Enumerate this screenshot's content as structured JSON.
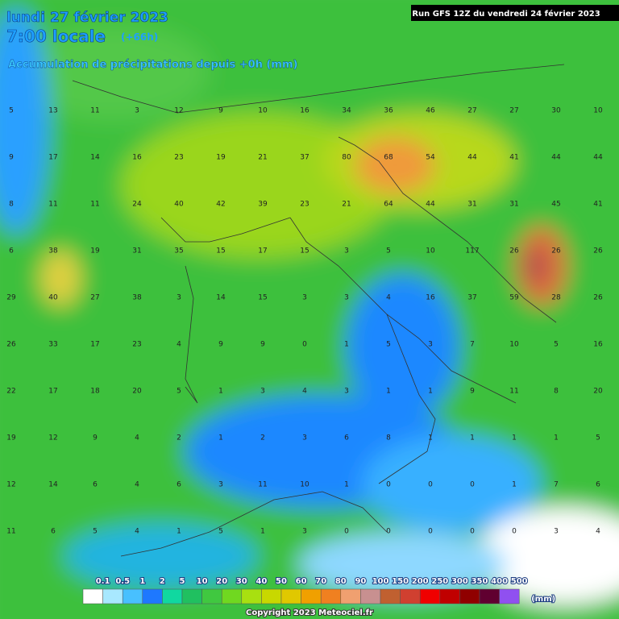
{
  "header": {
    "date": "lundi 27 février 2023",
    "time": "7:00 locale",
    "lead": "(+66h)",
    "product": "Accumulation de précipitations depuis +0h (mm)",
    "run": "Run GFS 12Z du vendredi 24 février 2023"
  },
  "map": {
    "grid": [
      [
        5,
        13,
        11,
        3,
        12,
        9,
        10,
        16,
        34,
        36,
        46,
        27,
        27,
        30,
        10
      ],
      [
        9,
        17,
        14,
        16,
        23,
        19,
        21,
        37,
        80,
        68,
        54,
        44,
        41,
        44,
        44
      ],
      [
        8,
        11,
        11,
        24,
        40,
        42,
        39,
        23,
        21,
        64,
        44,
        31,
        31,
        45,
        41
      ],
      [
        6,
        38,
        19,
        31,
        35,
        15,
        17,
        15,
        3,
        5,
        10,
        117,
        26,
        26,
        26
      ],
      [
        29,
        40,
        27,
        38,
        3,
        14,
        15,
        3,
        3,
        4,
        16,
        37,
        59,
        28,
        26
      ],
      [
        26,
        33,
        17,
        23,
        4,
        9,
        9,
        0,
        1,
        5,
        3,
        7,
        10,
        5,
        16
      ],
      [
        22,
        17,
        18,
        20,
        5,
        1,
        3,
        4,
        3,
        1,
        1,
        9,
        11,
        8,
        20
      ],
      [
        19,
        12,
        9,
        4,
        2,
        1,
        2,
        3,
        6,
        8,
        1,
        1,
        1,
        1,
        5
      ],
      [
        12,
        14,
        6,
        4,
        6,
        3,
        11,
        10,
        1,
        0,
        0,
        0,
        1,
        7,
        6
      ],
      [
        11,
        6,
        5,
        4,
        1,
        5,
        1,
        3,
        0,
        0,
        0,
        0,
        0,
        3,
        4
      ]
    ]
  },
  "legend": {
    "labels": [
      "0.1",
      "0.5",
      "1",
      "2",
      "5",
      "10",
      "20",
      "30",
      "40",
      "50",
      "60",
      "70",
      "80",
      "90",
      "100",
      "150",
      "200",
      "250",
      "300",
      "350",
      "400",
      "500"
    ],
    "colors": [
      "#ffffff",
      "#a8e8ff",
      "#48c0ff",
      "#1e78ff",
      "#10d8a0",
      "#20c060",
      "#40c840",
      "#70d820",
      "#a8e010",
      "#c8d800",
      "#e0c800",
      "#f0a000",
      "#f08020",
      "#f0a070",
      "#c89090",
      "#c06030",
      "#d04030",
      "#f00000",
      "#c00000",
      "#900000",
      "#600030",
      "#9050f0"
    ],
    "unit": "(mm)"
  },
  "footer": {
    "copyright": "Copyright 2023 Meteociel.fr"
  }
}
